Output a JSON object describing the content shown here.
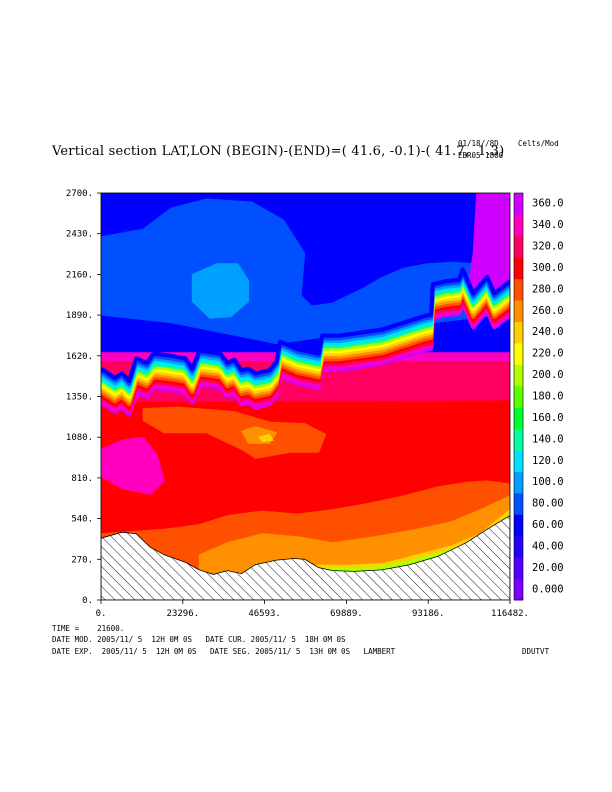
{
  "header": {
    "title": "Vertical section LAT,LON (BEGIN)-(END)=( 41.6, -0.1)-( 41.7,  1.3)",
    "date_code": "01/18//8D",
    "run_code": "EBR05 1800",
    "units": "Celts/Mod"
  },
  "footer": {
    "time_line": "TIME =    21600.",
    "line1": "DATE MOD. 2005/11/ 5  12H 0M 0S   DATE CUR. 2005/11/ 5  18H 0M 0S",
    "line2": "DATE EXP.  2005/11/ 5  12H 0M 0S   DATE SEG. 2005/11/ 5  13H 0M 0S   LAMBERT",
    "field_name": "DDUTVT"
  },
  "chart_data": {
    "type": "contour",
    "x_ticks": [
      0,
      23296,
      46593,
      69889,
      93186,
      116482
    ],
    "x_tick_labels": [
      "0.",
      "23296.",
      "46593.",
      "69889.",
      "93186.",
      "116482."
    ],
    "y_ticks": [
      0,
      270,
      540,
      810,
      1080,
      1350,
      1620,
      1890,
      2160,
      2430,
      2700
    ],
    "y_tick_labels": [
      "0.",
      "270.",
      "540.",
      "810.",
      "1080.",
      "1350.",
      "1620.",
      "1890.",
      "2160.",
      "2430.",
      "2700."
    ],
    "xlim": [
      0,
      116482
    ],
    "ylim": [
      0,
      2700
    ],
    "colorbar": {
      "labels": [
        "0.000",
        "20.00",
        "40.00",
        "60.00",
        "80.00",
        "100.0",
        "120.0",
        "140.0",
        "160.0",
        "180.0",
        "200.0",
        "220.0",
        "240.0",
        "260.0",
        "280.0",
        "300.0",
        "320.0",
        "340.0",
        "360.0"
      ],
      "colors": [
        "#7b00ff",
        "#5400ff",
        "#2400ff",
        "#0000ff",
        "#0050ff",
        "#00a0ff",
        "#00e0ff",
        "#00ffa0",
        "#00ff30",
        "#60ff00",
        "#b0ff00",
        "#ffff00",
        "#ffd000",
        "#ff9000",
        "#ff5000",
        "#ff0000",
        "#ff0060",
        "#ff00c0",
        "#d000ff"
      ]
    },
    "terrain": [
      [
        0,
        410
      ],
      [
        6000,
        450
      ],
      [
        10000,
        440
      ],
      [
        14000,
        350
      ],
      [
        18000,
        300
      ],
      [
        24000,
        250
      ],
      [
        28000,
        200
      ],
      [
        32000,
        170
      ],
      [
        36000,
        195
      ],
      [
        40000,
        175
      ],
      [
        44000,
        235
      ],
      [
        50000,
        265
      ],
      [
        55000,
        275
      ],
      [
        58000,
        270
      ],
      [
        62000,
        215
      ],
      [
        66000,
        195
      ],
      [
        72000,
        190
      ],
      [
        80000,
        200
      ],
      [
        88000,
        235
      ],
      [
        96000,
        290
      ],
      [
        104000,
        380
      ],
      [
        110000,
        470
      ],
      [
        116482,
        560
      ]
    ],
    "fields": [
      {
        "name": "upper-dark-blue",
        "color": "#0000ff",
        "poly": [
          [
            0,
            2700
          ],
          [
            116482,
            2700
          ],
          [
            116482,
            1600
          ],
          [
            0,
            1600
          ]
        ]
      },
      {
        "name": "sky-blue-band",
        "color": "#0050ff",
        "poly": [
          [
            0,
            2410
          ],
          [
            12000,
            2460
          ],
          [
            20000,
            2600
          ],
          [
            30000,
            2660
          ],
          [
            43000,
            2640
          ],
          [
            52000,
            2520
          ],
          [
            58000,
            2300
          ],
          [
            57000,
            2020
          ],
          [
            60000,
            1950
          ],
          [
            66000,
            1970
          ],
          [
            74000,
            2060
          ],
          [
            80000,
            2140
          ],
          [
            86000,
            2200
          ],
          [
            93000,
            2230
          ],
          [
            100000,
            2240
          ],
          [
            107000,
            2230
          ],
          [
            116482,
            2150
          ],
          [
            116482,
            1900
          ],
          [
            80000,
            1800
          ],
          [
            50000,
            1700
          ],
          [
            20000,
            1840
          ],
          [
            0,
            1890
          ]
        ]
      },
      {
        "name": "light-blue-core",
        "color": "#00a0ff",
        "poly": [
          [
            26000,
            2160
          ],
          [
            33000,
            2230
          ],
          [
            39000,
            2230
          ],
          [
            42000,
            2120
          ],
          [
            42000,
            1980
          ],
          [
            37000,
            1880
          ],
          [
            31000,
            1870
          ],
          [
            26000,
            1980
          ]
        ]
      },
      {
        "name": "violet-top-right",
        "color": "#d000ff",
        "poly": [
          [
            107000,
            2700
          ],
          [
            116482,
            2700
          ],
          [
            116482,
            1990
          ],
          [
            104000,
            1990
          ],
          [
            106000,
            2300
          ]
        ]
      },
      {
        "name": "lower-stable",
        "color": "#ff00c0",
        "poly": [
          [
            0,
            1640
          ],
          [
            116482,
            1640
          ],
          [
            116482,
            0
          ],
          [
            0,
            0
          ]
        ]
      },
      {
        "name": "magenta-top",
        "color": "#ff0060",
        "poly": [
          [
            0,
            1580
          ],
          [
            116482,
            1580
          ],
          [
            116482,
            0
          ],
          [
            0,
            0
          ]
        ]
      },
      {
        "name": "red-lower",
        "color": "#ff0000",
        "poly": [
          [
            0,
            1310
          ],
          [
            116482,
            1320
          ],
          [
            116482,
            0
          ],
          [
            0,
            0
          ]
        ]
      },
      {
        "name": "pink-left-blob",
        "color": "#ff00c0",
        "poly": [
          [
            0,
            1000
          ],
          [
            6000,
            1060
          ],
          [
            12000,
            1080
          ],
          [
            16000,
            960
          ],
          [
            18000,
            790
          ],
          [
            14000,
            700
          ],
          [
            6000,
            740
          ],
          [
            0,
            820
          ]
        ]
      },
      {
        "name": "orange-upper-blob",
        "color": "#ff5000",
        "poly": [
          [
            12000,
            1270
          ],
          [
            22000,
            1280
          ],
          [
            38000,
            1250
          ],
          [
            48000,
            1180
          ],
          [
            58000,
            1170
          ],
          [
            64000,
            1100
          ],
          [
            62000,
            980
          ],
          [
            54000,
            980
          ],
          [
            44000,
            940
          ],
          [
            40000,
            1000
          ],
          [
            30000,
            1110
          ],
          [
            18000,
            1110
          ],
          [
            12000,
            1190
          ]
        ]
      },
      {
        "name": "orange-light-core",
        "color": "#ff9000",
        "poly": [
          [
            40000,
            1120
          ],
          [
            44000,
            1150
          ],
          [
            50000,
            1110
          ],
          [
            48000,
            1040
          ],
          [
            42000,
            1040
          ]
        ]
      },
      {
        "name": "yellow-core",
        "color": "#ffd000",
        "poly": [
          [
            45000,
            1080
          ],
          [
            48000,
            1100
          ],
          [
            49000,
            1060
          ],
          [
            46000,
            1050
          ]
        ]
      },
      {
        "name": "orange-lower-layer",
        "color": "#ff5000",
        "poly": [
          [
            0,
            440
          ],
          [
            18000,
            470
          ],
          [
            28000,
            500
          ],
          [
            36000,
            560
          ],
          [
            46000,
            590
          ],
          [
            56000,
            570
          ],
          [
            66000,
            600
          ],
          [
            76000,
            640
          ],
          [
            86000,
            690
          ],
          [
            96000,
            750
          ],
          [
            104000,
            780
          ],
          [
            110000,
            790
          ],
          [
            116482,
            770
          ],
          [
            116482,
            0
          ],
          [
            0,
            0
          ]
        ]
      },
      {
        "name": "light-orange-layer",
        "color": "#ff9000",
        "poly": [
          [
            28000,
            300
          ],
          [
            36000,
            380
          ],
          [
            46000,
            440
          ],
          [
            56000,
            420
          ],
          [
            66000,
            380
          ],
          [
            78000,
            420
          ],
          [
            90000,
            470
          ],
          [
            100000,
            520
          ],
          [
            108000,
            600
          ],
          [
            116482,
            690
          ],
          [
            116482,
            0
          ],
          [
            28000,
            0
          ]
        ]
      },
      {
        "name": "yellow-layer",
        "color": "#ffd000",
        "poly": [
          [
            60000,
            230
          ],
          [
            70000,
            230
          ],
          [
            80000,
            240
          ],
          [
            90000,
            300
          ],
          [
            100000,
            360
          ],
          [
            108000,
            440
          ],
          [
            116482,
            600
          ],
          [
            116482,
            0
          ],
          [
            60000,
            0
          ]
        ]
      },
      {
        "name": "yellow-green-layer",
        "color": "#b0ff00",
        "poly": [
          [
            64000,
            210
          ],
          [
            76000,
            210
          ],
          [
            86000,
            250
          ],
          [
            96000,
            310
          ],
          [
            106000,
            380
          ],
          [
            116482,
            570
          ],
          [
            116482,
            0
          ],
          [
            64000,
            0
          ]
        ]
      }
    ],
    "inversion_line": [
      [
        0,
        1430
      ],
      [
        4000,
        1370
      ],
      [
        6000,
        1400
      ],
      [
        8000,
        1350
      ],
      [
        10000,
        1500
      ],
      [
        13000,
        1470
      ],
      [
        15000,
        1530
      ],
      [
        19000,
        1520
      ],
      [
        24000,
        1500
      ],
      [
        26000,
        1430
      ],
      [
        28000,
        1550
      ],
      [
        34000,
        1530
      ],
      [
        36000,
        1470
      ],
      [
        38000,
        1490
      ],
      [
        40000,
        1420
      ],
      [
        42000,
        1430
      ],
      [
        44000,
        1400
      ],
      [
        48000,
        1420
      ],
      [
        50000,
        1480
      ],
      [
        51000,
        1610
      ],
      [
        56000,
        1560
      ],
      [
        62000,
        1530
      ],
      [
        63000,
        1650
      ],
      [
        68000,
        1650
      ],
      [
        80000,
        1690
      ],
      [
        88000,
        1750
      ],
      [
        92000,
        1780
      ],
      [
        94000,
        1790
      ],
      [
        94500,
        1990
      ],
      [
        98000,
        2010
      ],
      [
        102000,
        2020
      ],
      [
        103000,
        2090
      ],
      [
        106000,
        1930
      ],
      [
        110000,
        2040
      ],
      [
        112000,
        1930
      ],
      [
        116482,
        2010
      ]
    ],
    "band_colors": [
      "#d000ff",
      "#ff00c0",
      "#ff0060",
      "#ff0000",
      "#ff5000",
      "#ff9000",
      "#ffd000",
      "#ffff00",
      "#b0ff00",
      "#00ffa0",
      "#00e0ff",
      "#00a0ff",
      "#0050ff",
      "#0000ff"
    ]
  }
}
